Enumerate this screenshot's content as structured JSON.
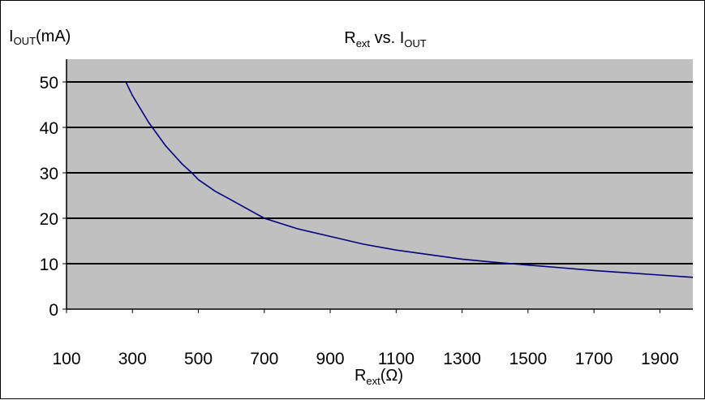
{
  "chart_data": {
    "type": "line",
    "title": {
      "main": "R",
      "main_sub": "ext",
      "middle": " vs. I",
      "end_sub": "OUT"
    },
    "ylabel": {
      "prefix": "I",
      "sub": "OUT",
      "suffix": "(mA)"
    },
    "xlabel": {
      "prefix": "R",
      "sub": "ext",
      "suffix": "(Ω)"
    },
    "xlim": [
      100,
      2000
    ],
    "ylim": [
      0,
      55
    ],
    "x_ticks": [
      100,
      300,
      500,
      700,
      900,
      1100,
      1300,
      1500,
      1700,
      1900
    ],
    "y_ticks": [
      0,
      10,
      20,
      30,
      40,
      50
    ],
    "grid": "horizontal",
    "series": [
      {
        "x": [
          280,
          300,
          350,
          400,
          450,
          480,
          500,
          550,
          600,
          650,
          700,
          800,
          900,
          1000,
          1100,
          1200,
          1300,
          1400,
          1500,
          1600,
          1700,
          1800,
          1900,
          2000
        ],
        "y": [
          50,
          47,
          41,
          36,
          32,
          30,
          28.5,
          26,
          24,
          22,
          20,
          17.7,
          16,
          14.3,
          13,
          12,
          11,
          10.3,
          9.7,
          9.1,
          8.5,
          8,
          7.5,
          7
        ]
      }
    ],
    "colors": {
      "plot_bg": "#c0c0c0",
      "line": "#000080",
      "grid": "#000000"
    }
  }
}
